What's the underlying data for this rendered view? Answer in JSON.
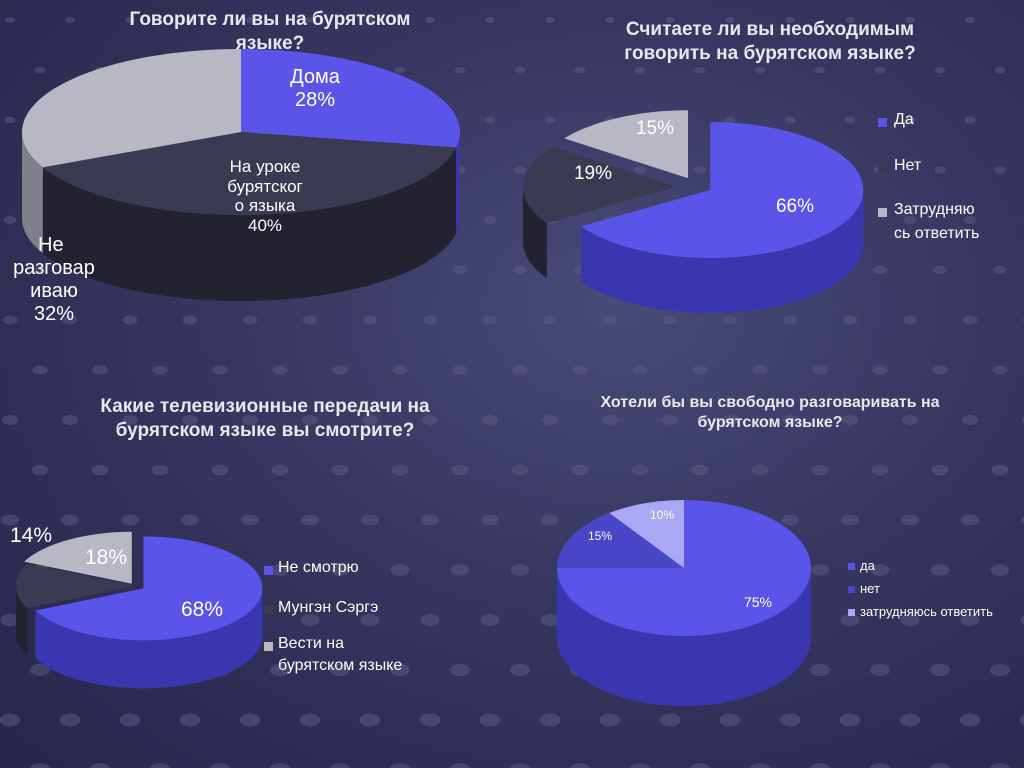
{
  "colors": {
    "blue": "#5a55e8",
    "blue_dark": "#3a36b0",
    "dark": "#3a3a52",
    "dark_side": "#222230",
    "gray": "#b8b8c4",
    "gray_side": "#80808c",
    "light_blue": "#aaa8f5"
  },
  "chart_data": [
    {
      "type": "pie",
      "title": "Говорите ли вы на бурятском языке?",
      "slices": [
        {
          "label": "Дома",
          "value": 28,
          "value_label": "28%",
          "color": "blue"
        },
        {
          "label": "На уроке бурятского языка",
          "value": 40,
          "value_label": "40%",
          "color": "dark"
        },
        {
          "label": "Не разговариваю",
          "value": 32,
          "value_label": "32%",
          "color": "gray"
        }
      ],
      "label_lines": {
        "home": [
          "Дома",
          "28%"
        ],
        "lesson": [
          "На уроке",
          "бурятског",
          "о языка",
          "40%"
        ],
        "none": [
          "Не",
          "разговар",
          "иваю",
          "32%"
        ]
      }
    },
    {
      "type": "pie",
      "title": "Считаете ли вы необходимым говорить на бурятском языке?",
      "slices": [
        {
          "label": "Да",
          "value": 66,
          "value_label": "66%",
          "color": "blue"
        },
        {
          "label": "Нет",
          "value": 19,
          "value_label": "19%",
          "color": "dark"
        },
        {
          "label": "Затрудняюсь ответить",
          "value": 15,
          "value_label": "15%",
          "color": "gray"
        }
      ],
      "legend": [
        "Да",
        "Нет",
        "Затрудняю",
        "сь ответить"
      ],
      "legend_placement": "right"
    },
    {
      "type": "pie",
      "title": "Какие телевизионные передачи на бурятском языке вы смотрите?",
      "slices": [
        {
          "label": "Не смотрю",
          "value": 68,
          "value_label": "68%",
          "color": "blue"
        },
        {
          "label": "Мунгэн Сэргэ",
          "value": 14,
          "value_label": "14%",
          "color": "dark"
        },
        {
          "label": "Вести на бурятском языке",
          "value": 18,
          "value_label": "18%",
          "color": "gray"
        }
      ],
      "legend": [
        "Не смотрю",
        "Мунгэн Сэргэ",
        "Вести на",
        "бурятском языке"
      ],
      "legend_placement": "right"
    },
    {
      "type": "pie",
      "title": "Хотели бы вы свободно разговаривать на бурятском языке?",
      "slices": [
        {
          "label": "да",
          "value": 75,
          "value_label": "75%",
          "color": "blue"
        },
        {
          "label": "нет",
          "value": 15,
          "value_label": "15%",
          "color": "blue"
        },
        {
          "label": "затрудняюсь ответить",
          "value": 10,
          "value_label": "10%",
          "color": "light_blue"
        }
      ],
      "legend": [
        "да",
        "нет",
        "затрудняюсь ответить"
      ],
      "legend_placement": "right"
    }
  ],
  "titles": {
    "c1": [
      "Говорите ли вы на бурятском",
      "языке?"
    ],
    "c2": [
      "Считаете ли вы необходимым",
      "говорить на бурятском языке?"
    ],
    "c3": [
      "Какие телевизионные передачи на",
      "бурятском языке вы смотрите?"
    ],
    "c4": [
      "Хотели бы вы свободно разговаривать на",
      "бурятском языке?"
    ]
  }
}
